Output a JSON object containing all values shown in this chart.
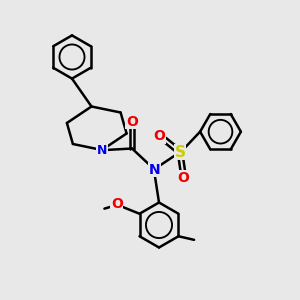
{
  "bg_color": "#e8e8e8",
  "bond_color": "#000000",
  "bond_width": 1.8,
  "N_color": "#0000ee",
  "O_color": "#ee0000",
  "S_color": "#cccc00",
  "fig_size": [
    3.0,
    3.0
  ],
  "dpi": 100,
  "xlim": [
    0,
    10
  ],
  "ylim": [
    0,
    10
  ]
}
